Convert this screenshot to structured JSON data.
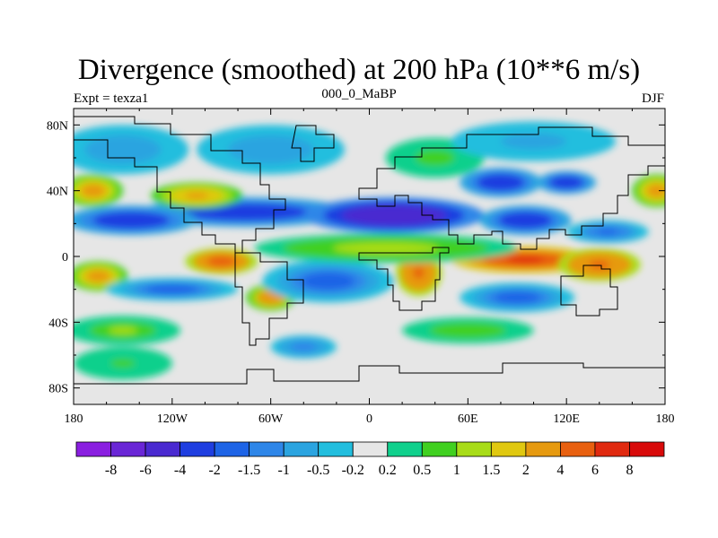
{
  "title": "Divergence (smoothed) at 200 hPa (10**6 m/s)",
  "subtitle_left": "Expt = texza1",
  "subtitle_center": "000_0_MaBP",
  "subtitle_right": "DJF",
  "x_ticks": [
    "180",
    "120W",
    "60W",
    "0",
    "60E",
    "120E",
    "180"
  ],
  "y_ticks": [
    "80N",
    "40N",
    "0",
    "40S",
    "80S"
  ],
  "colorbar": {
    "labels": [
      "-8",
      "-6",
      "-4",
      "-2",
      "-1.5",
      "-1",
      "-0.5",
      "-0.2",
      "0.2",
      "0.5",
      "1",
      "1.5",
      "2",
      "4",
      "6",
      "8"
    ],
    "colors": [
      "#8a1fe0",
      "#6a26d6",
      "#4a2ad0",
      "#1f3ee0",
      "#1e64e6",
      "#2e86e8",
      "#2ba4e0",
      "#22bede",
      "#e6e6e6",
      "#10d08c",
      "#40d020",
      "#a8dc18",
      "#e0c810",
      "#e69a10",
      "#e86010",
      "#e02a10",
      "#d80a0a"
    ]
  },
  "chart_data": {
    "type": "heatmap",
    "title": "Divergence (smoothed) at 200 hPa (10**6 m/s)",
    "units": "10**6 m/s",
    "x_range": [
      -180,
      180
    ],
    "y_range": [
      -90,
      90
    ],
    "levels": [
      -8,
      -6,
      -4,
      -2,
      -1.5,
      -1,
      -0.5,
      -0.2,
      0.2,
      0.5,
      1,
      1.5,
      2,
      4,
      6,
      8
    ],
    "features": [
      {
        "lon": -75,
        "lat": 27,
        "w": 65,
        "h": 9,
        "value": -3
      },
      {
        "lon": -145,
        "lat": 22,
        "w": 40,
        "h": 9,
        "value": -3
      },
      {
        "lon": 15,
        "lat": 25,
        "w": 55,
        "h": 11,
        "value": -6
      },
      {
        "lon": 95,
        "lat": 22,
        "w": 28,
        "h": 9,
        "value": -3
      },
      {
        "lon": 80,
        "lat": 45,
        "w": 25,
        "h": 9,
        "value": -3
      },
      {
        "lon": 120,
        "lat": 45,
        "w": 18,
        "h": 7,
        "value": -3
      },
      {
        "lon": 145,
        "lat": 15,
        "w": 25,
        "h": 7,
        "value": -1.7
      },
      {
        "lon": -168,
        "lat": 40,
        "w": 18,
        "h": 10,
        "value": 2.5
      },
      {
        "lon": -105,
        "lat": 37,
        "w": 28,
        "h": 8,
        "value": 2.3
      },
      {
        "lon": 175,
        "lat": 40,
        "w": 15,
        "h": 10,
        "value": 2.5
      },
      {
        "lon": -165,
        "lat": -12,
        "w": 18,
        "h": 9,
        "value": 2.5
      },
      {
        "lon": -90,
        "lat": -3,
        "w": 22,
        "h": 8,
        "value": 5
      },
      {
        "lon": -60,
        "lat": -25,
        "w": 15,
        "h": 8,
        "value": 3
      },
      {
        "lon": 30,
        "lat": -10,
        "w": 14,
        "h": 14,
        "value": 4.5
      },
      {
        "lon": 95,
        "lat": -2,
        "w": 45,
        "h": 8,
        "value": 6.5
      },
      {
        "lon": 140,
        "lat": -5,
        "w": 25,
        "h": 10,
        "value": 4.5
      },
      {
        "lon": -120,
        "lat": -20,
        "w": 40,
        "h": 7,
        "value": -2
      },
      {
        "lon": -25,
        "lat": -15,
        "w": 40,
        "h": 13,
        "value": -2
      },
      {
        "lon": 90,
        "lat": -25,
        "w": 35,
        "h": 9,
        "value": -2
      },
      {
        "lon": -40,
        "lat": -55,
        "w": 20,
        "h": 7,
        "value": -1.2
      },
      {
        "lon": -150,
        "lat": -45,
        "w": 35,
        "h": 9,
        "value": 1
      },
      {
        "lon": 60,
        "lat": -45,
        "w": 40,
        "h": 8,
        "value": 0.8
      },
      {
        "lon": 10,
        "lat": 5,
        "w": 80,
        "h": 9,
        "value": 1.2
      },
      {
        "lon": -150,
        "lat": 65,
        "w": 40,
        "h": 15,
        "value": -0.8
      },
      {
        "lon": -60,
        "lat": 65,
        "w": 45,
        "h": 15,
        "value": -0.8
      },
      {
        "lon": 40,
        "lat": 60,
        "w": 30,
        "h": 12,
        "value": 0.7
      },
      {
        "lon": 100,
        "lat": 70,
        "w": 50,
        "h": 12,
        "value": -0.7
      },
      {
        "lon": -150,
        "lat": -65,
        "w": 30,
        "h": 10,
        "value": 0.5
      }
    ]
  }
}
